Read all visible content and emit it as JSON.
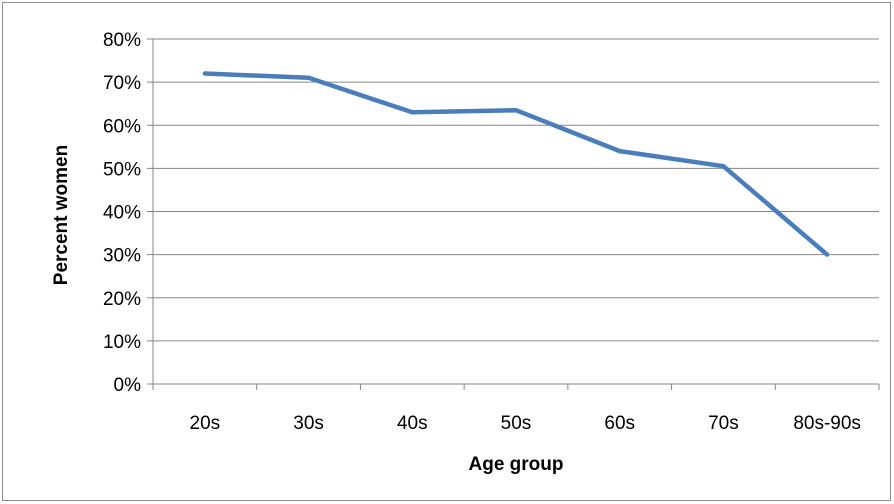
{
  "chart_data": {
    "type": "line",
    "title": "",
    "xlabel": "Age group",
    "ylabel": "Percent women",
    "categories": [
      "20s",
      "30s",
      "40s",
      "50s",
      "60s",
      "70s",
      "80s-90s"
    ],
    "series": [
      {
        "values": [
          72,
          71,
          63,
          63.5,
          54,
          50.5,
          30
        ],
        "color": "#4a7ebb"
      }
    ],
    "ylim": [
      0,
      80
    ],
    "yticks": [
      0,
      10,
      20,
      30,
      40,
      50,
      60,
      70,
      80
    ],
    "ytick_labels": [
      "0%",
      "10%",
      "20%",
      "30%",
      "40%",
      "50%",
      "60%",
      "70%",
      "80%"
    ],
    "grid": true,
    "gridline_color": "#868686",
    "legend": "none"
  }
}
